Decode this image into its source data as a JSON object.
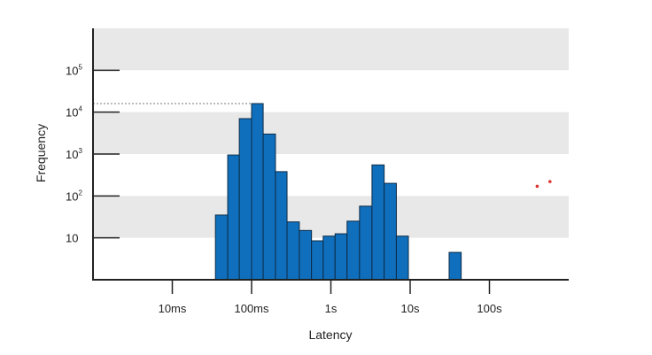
{
  "chart_data": {
    "type": "bar",
    "xlabel": "Latency",
    "ylabel": "Frequency",
    "x_scale": "log",
    "y_scale": "log",
    "x_ticks": [
      {
        "value": 0.01,
        "label": "10ms"
      },
      {
        "value": 0.1,
        "label": "100ms"
      },
      {
        "value": 1,
        "label": "1s"
      },
      {
        "value": 10,
        "label": "10s"
      },
      {
        "value": 100,
        "label": "100s"
      }
    ],
    "y_ticks": [
      {
        "value": 10,
        "label": "10",
        "sup": ""
      },
      {
        "value": 100,
        "label": "10",
        "sup": "2"
      },
      {
        "value": 1000,
        "label": "10",
        "sup": "3"
      },
      {
        "value": 10000,
        "label": "10",
        "sup": "4"
      },
      {
        "value": 100000,
        "label": "10",
        "sup": "5"
      }
    ],
    "xlim": [
      0.001,
      1000
    ],
    "ylim": [
      1,
      1000000
    ],
    "bars": [
      {
        "x_start": 0.035,
        "x_end": 0.05,
        "value": 35
      },
      {
        "x_start": 0.05,
        "x_end": 0.07,
        "value": 950
      },
      {
        "x_start": 0.07,
        "x_end": 0.1,
        "value": 7000
      },
      {
        "x_start": 0.1,
        "x_end": 0.14,
        "value": 16000
      },
      {
        "x_start": 0.14,
        "x_end": 0.2,
        "value": 3000
      },
      {
        "x_start": 0.2,
        "x_end": 0.28,
        "value": 380
      },
      {
        "x_start": 0.28,
        "x_end": 0.4,
        "value": 24
      },
      {
        "x_start": 0.4,
        "x_end": 0.57,
        "value": 15
      },
      {
        "x_start": 0.57,
        "x_end": 0.8,
        "value": 8.5
      },
      {
        "x_start": 0.8,
        "x_end": 1.13,
        "value": 11
      },
      {
        "x_start": 1.13,
        "x_end": 1.6,
        "value": 12.5
      },
      {
        "x_start": 1.6,
        "x_end": 2.3,
        "value": 25
      },
      {
        "x_start": 2.3,
        "x_end": 3.3,
        "value": 57
      },
      {
        "x_start": 3.3,
        "x_end": 4.7,
        "value": 550
      },
      {
        "x_start": 4.7,
        "x_end": 6.7,
        "value": 200
      },
      {
        "x_start": 6.7,
        "x_end": 9.5,
        "value": 11
      },
      {
        "x_start": 31,
        "x_end": 44,
        "value": 4.5
      }
    ],
    "reference_line": {
      "value": 16000,
      "x_start": 0.001,
      "x_end": 0.1
    },
    "bands": [
      [
        10,
        100
      ],
      [
        1000,
        10000
      ],
      [
        100000,
        1000000
      ]
    ],
    "colors": {
      "bar_fill": "#0f6fbd",
      "bar_stroke": "#0d2b45",
      "band": "#e8e8e8",
      "axis": "#222222",
      "reference_line": "#777777",
      "marker": "#d9342b"
    },
    "markers": [
      {
        "x": 400,
        "y": 170
      },
      {
        "x": 580,
        "y": 220
      }
    ]
  }
}
